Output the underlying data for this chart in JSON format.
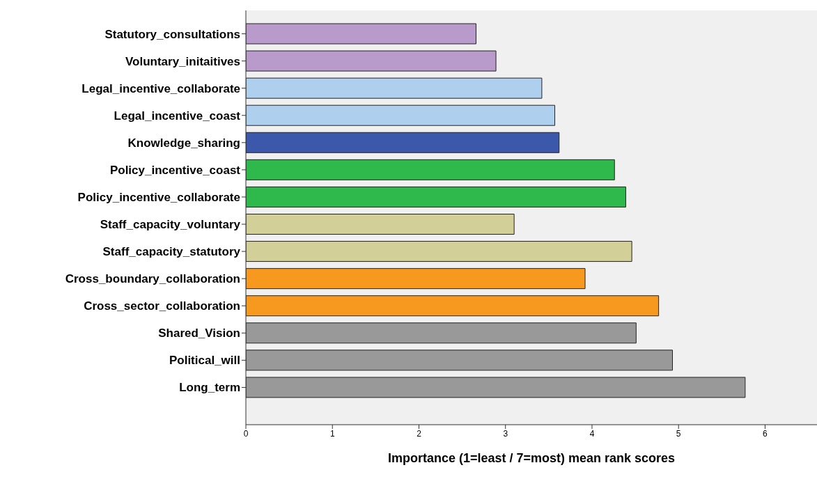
{
  "chart_data": {
    "type": "bar",
    "orientation": "horizontal",
    "xlabel": "Importance (1=least / 7=most) mean rank scores",
    "categories": [
      "Statutory_consultations",
      "Voluntary_initaitives",
      "Legal_incentive_collaborate",
      "Legal_incentive_coast",
      "Knowledge_sharing",
      "Policy_incentive_coast",
      "Policy_incentive_collaborate",
      "Staff_capacity_voluntary",
      "Staff_capacity_statutory",
      "Cross_boundary_collaboration",
      "Cross_sector_collaboration",
      "Shared_Vision",
      "Political_will",
      "Long_term"
    ],
    "values": [
      2.66,
      2.89,
      3.42,
      3.57,
      3.62,
      4.26,
      4.39,
      3.1,
      4.46,
      3.92,
      4.77,
      4.51,
      4.93,
      5.77
    ],
    "colors": [
      "#b89bca",
      "#b89bca",
      "#aed0ee",
      "#aed0ee",
      "#3c58ab",
      "#2fb84b",
      "#2fb84b",
      "#d3cf98",
      "#d3cf98",
      "#f7991f",
      "#f7991f",
      "#999999",
      "#999999",
      "#999999"
    ],
    "xlim": [
      0,
      6.6
    ],
    "xticks": [
      0,
      1,
      2,
      3,
      4,
      5,
      6
    ],
    "grid": false,
    "legend": false
  }
}
